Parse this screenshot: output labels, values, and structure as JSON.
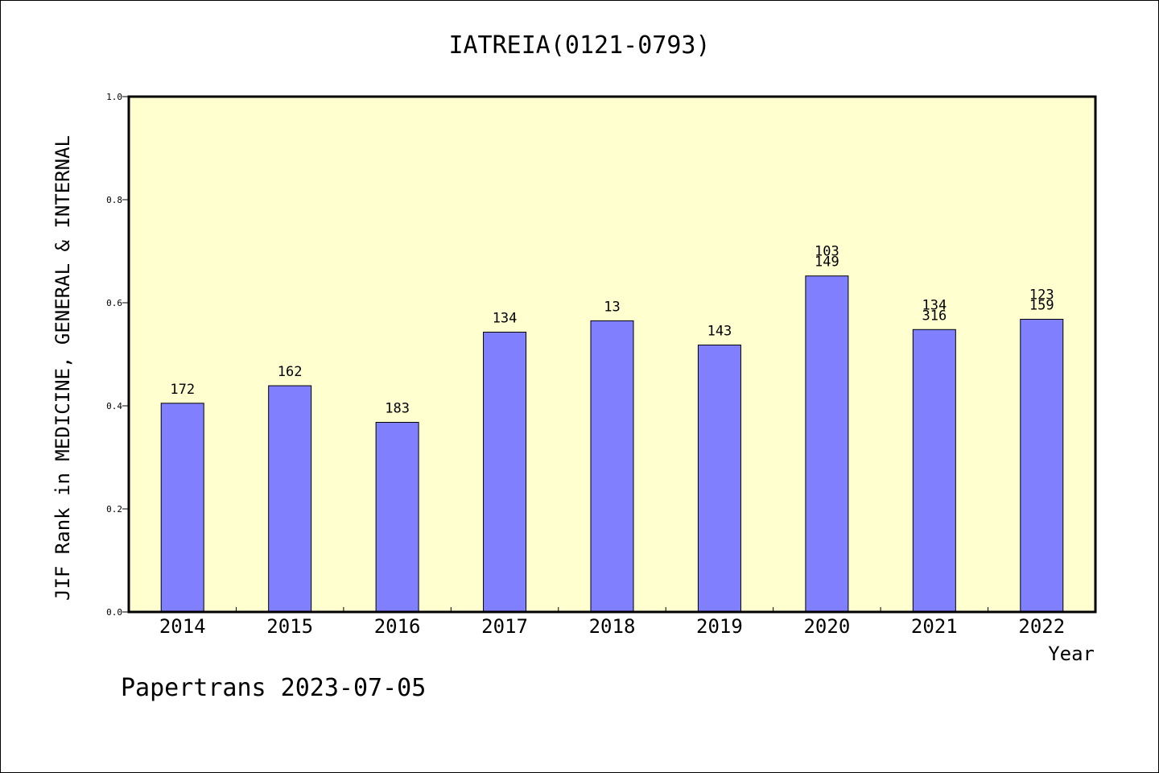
{
  "chart_data": {
    "type": "bar",
    "title": "IATREIA(0121-0793)",
    "xlabel": "Year",
    "ylabel": "JIF Rank in MEDICINE, GENERAL & INTERNAL",
    "ylim": [
      0,
      1.0
    ],
    "yticks": [
      "0.0",
      "0.2",
      "0.4",
      "0.6",
      "0.8",
      "1.0"
    ],
    "categories": [
      "2014",
      "2015",
      "2016",
      "2017",
      "2018",
      "2019",
      "2020",
      "2021",
      "2022"
    ],
    "values": [
      0.405,
      0.439,
      0.368,
      0.543,
      0.565,
      0.518,
      0.652,
      0.548,
      0.568
    ],
    "bar_labels": [
      [
        "172"
      ],
      [
        "162"
      ],
      [
        "183"
      ],
      [
        "134"
      ],
      [
        "13"
      ],
      [
        "143"
      ],
      [
        "103",
        "149"
      ],
      [
        "134",
        "316"
      ],
      [
        "123",
        "159"
      ]
    ],
    "grid": false,
    "colors": {
      "bar_fill": "#8080ff",
      "plot_background": "#ffffd0"
    }
  },
  "footer": "Papertrans 2023-07-05"
}
